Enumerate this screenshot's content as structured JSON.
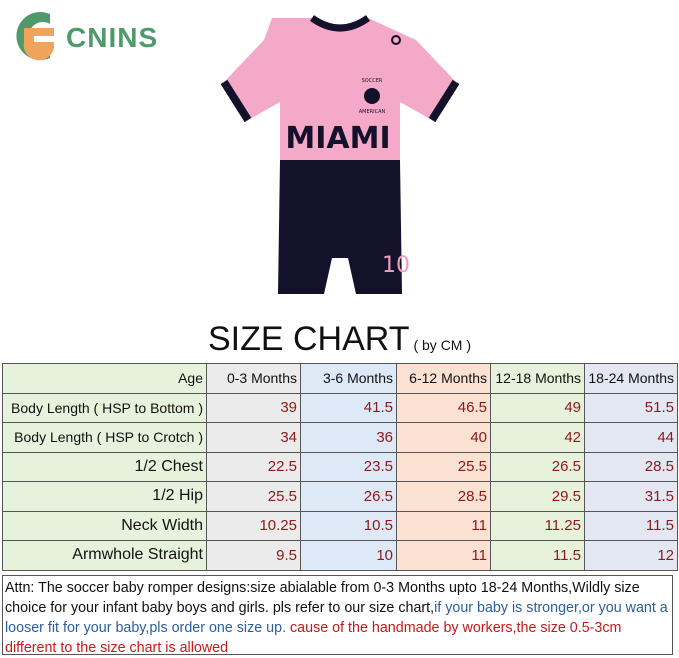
{
  "brand": {
    "name": "CNINS",
    "logo_icon": "cnins-logo-icon",
    "color": "#4e9a6a"
  },
  "product_image": {
    "chest_text": "MIAMI",
    "badge_top": "SOCCER",
    "badge_bottom": "AMERICAN",
    "number": "10",
    "colors": {
      "pink": "#f4a9c8",
      "navy": "#14122b",
      "number": "#f29bbf"
    }
  },
  "size_chart": {
    "title": "SIZE CHART",
    "unit_note": "( by CM )",
    "header": {
      "label": "Age",
      "columns": [
        "0-3 Months",
        "3-6 Months",
        "6-12 Months",
        "12-18 Months",
        "18-24 Months"
      ]
    },
    "rows": [
      {
        "label": "Body Length ( HSP to Bottom )",
        "values": [
          "39",
          "41.5",
          "46.5",
          "49",
          "51.5"
        ]
      },
      {
        "label": "Body Length ( HSP to Crotch )",
        "values": [
          "34",
          "36",
          "40",
          "42",
          "44"
        ]
      },
      {
        "label": "1/2 Chest",
        "values": [
          "22.5",
          "23.5",
          "25.5",
          "26.5",
          "28.5"
        ]
      },
      {
        "label": "1/2 Hip",
        "values": [
          "25.5",
          "26.5",
          "28.5",
          "29.5",
          "31.5"
        ]
      },
      {
        "label": "Neck Width",
        "values": [
          "10.25",
          "10.5",
          "11",
          "11.25",
          "11.5"
        ]
      },
      {
        "label": "Armwhole Straight",
        "values": [
          "9.5",
          "10",
          "11",
          "11.5",
          "12"
        ]
      }
    ],
    "column_colors": [
      "#ebebeb",
      "#dde9f7",
      "#fbe1d2",
      "#e6f2dc",
      "#e3e7f2"
    ]
  },
  "note": {
    "part1": "Attn: The soccer baby romper designs:size abialable from 0-3 Months upto 18-24 Months,Wildly size choice for your infant baby boys and girls. pls refer to our size chart,",
    "part2": "if your baby is stronger,or you want a looser fit for your baby,pls order one size up.",
    "part3": " cause of the handmade by workers,the size 0.5-3cm different to the size chart is allowed"
  }
}
